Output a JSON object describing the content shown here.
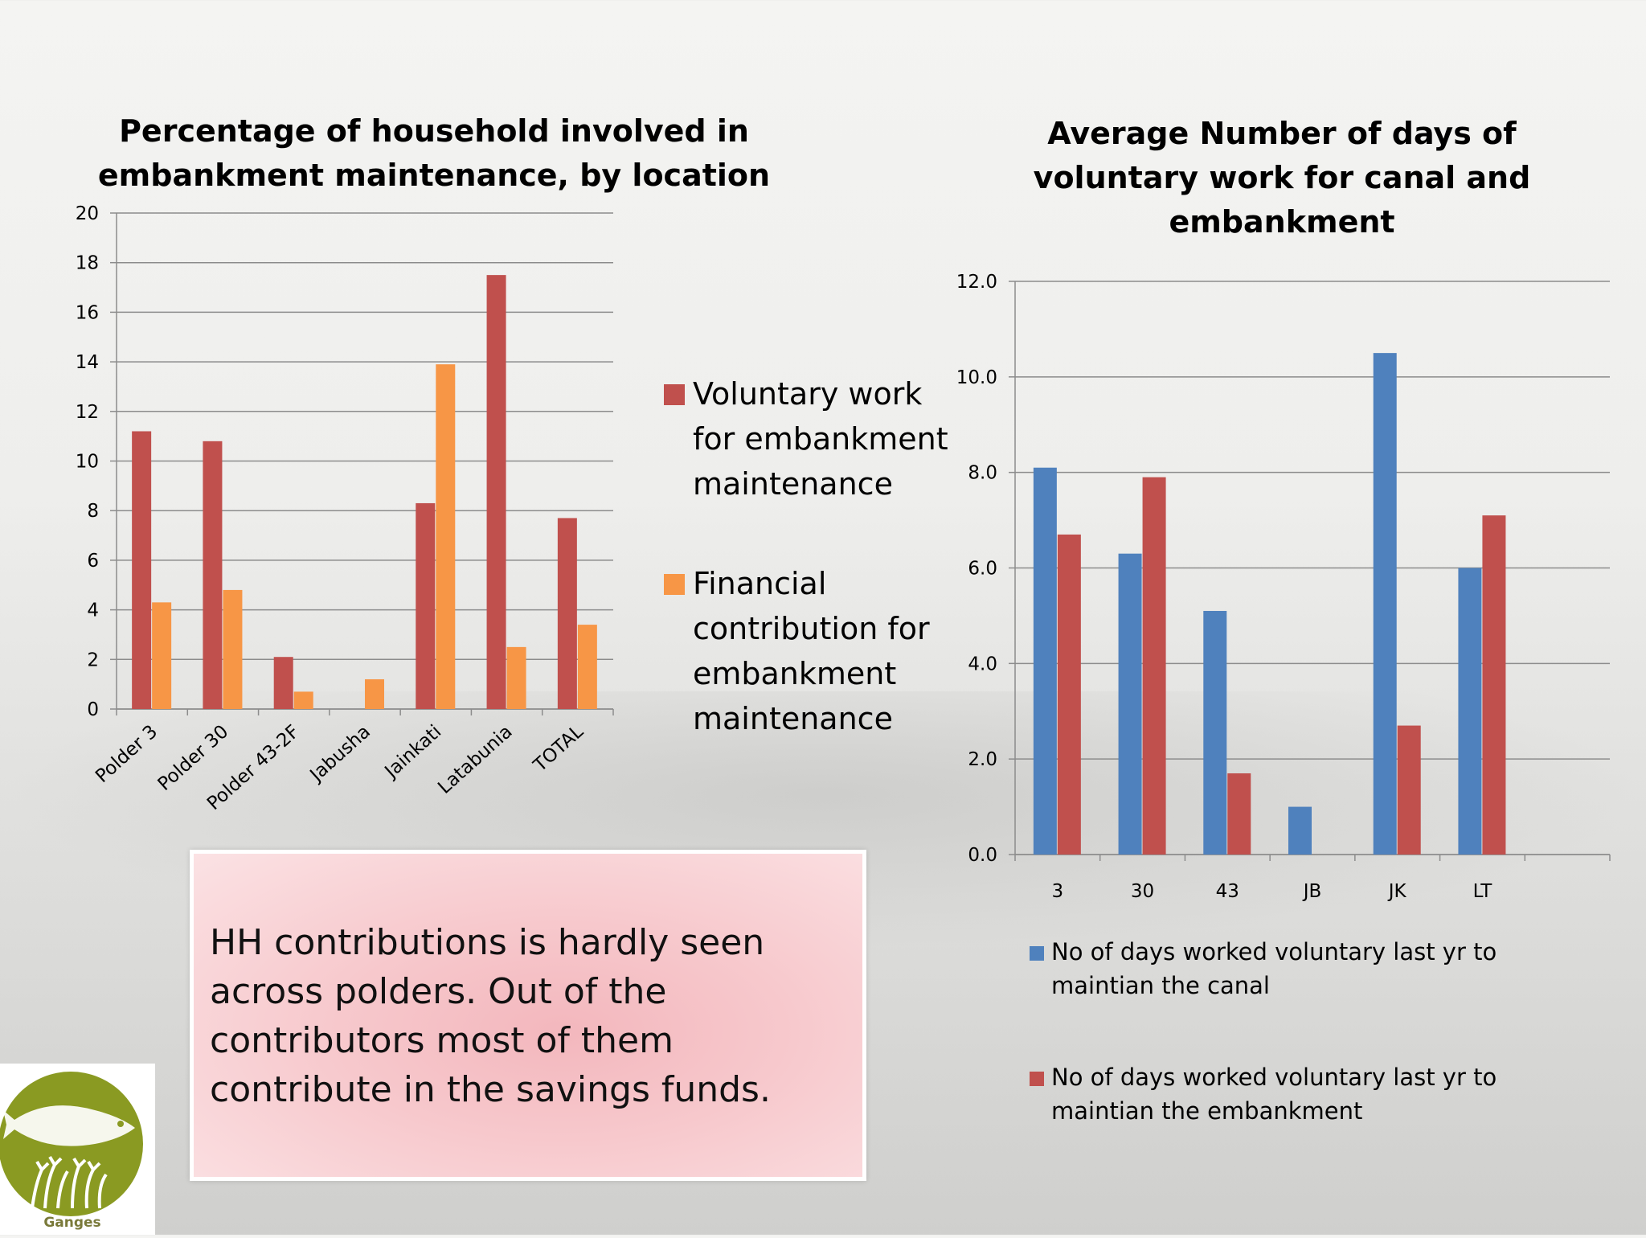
{
  "chart_data": [
    {
      "type": "bar",
      "title": "Percentage of household involved in embankment maintenance, by location",
      "categories": [
        "Polder 3",
        "Polder 30",
        "Polder 43-2F",
        "Jabusha",
        "Jainkati",
        "Latabunia",
        "TOTAL"
      ],
      "series": [
        {
          "name": "Voluntary work for embankment maintenance",
          "color": "#c0504d",
          "values": [
            11.2,
            10.8,
            2.1,
            0,
            8.3,
            17.5,
            7.7
          ]
        },
        {
          "name": "Financial contribution for embankment maintenance",
          "color": "#f79646",
          "values": [
            4.3,
            4.8,
            0.7,
            1.2,
            13.9,
            2.5,
            3.4
          ]
        }
      ],
      "yticks": [
        "0",
        "2",
        "4",
        "6",
        "8",
        "10",
        "12",
        "14",
        "16",
        "18",
        "20"
      ],
      "ylim": [
        0,
        20
      ],
      "grid": true,
      "legend_position": "right"
    },
    {
      "type": "bar",
      "title": "Average Number of days of voluntary work for canal and embankment",
      "categories": [
        "3",
        "30",
        "43",
        "JB",
        "JK",
        "LT"
      ],
      "series": [
        {
          "name": "No of days worked voluntary last yr to maintian the canal",
          "color": "#4f81bd",
          "values": [
            8.1,
            6.3,
            5.1,
            1.0,
            10.5,
            6.0
          ]
        },
        {
          "name": "No of days worked voluntary last yr to maintian the embankment",
          "color": "#c0504d",
          "values": [
            6.7,
            7.9,
            1.7,
            0,
            2.7,
            7.1
          ]
        }
      ],
      "yticks": [
        "0.0",
        "2.0",
        "4.0",
        "6.0",
        "8.0",
        "10.0",
        "12.0"
      ],
      "ylim": [
        0,
        12
      ],
      "grid": true,
      "legend_position": "bottom"
    }
  ],
  "note": {
    "text": "HH contributions is hardly seen across polders. Out of the contributors most of them contribute in the savings funds."
  },
  "logo": {
    "caption": "Ganges",
    "icon": "fish-and-grain-icon",
    "color": "#8a9a22"
  }
}
